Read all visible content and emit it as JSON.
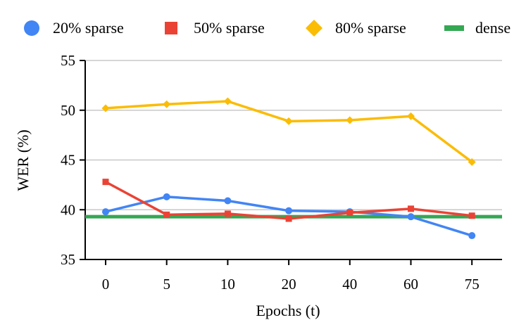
{
  "chart_data": {
    "type": "line",
    "categories": [
      "0",
      "5",
      "10",
      "20",
      "40",
      "60",
      "75"
    ],
    "xlabel": "Epochs (t)",
    "ylabel": "WER (%)",
    "ylim": [
      35,
      55
    ],
    "yticks": [
      35,
      40,
      45,
      50,
      55
    ],
    "grid": "horizontal",
    "legend_position": "top",
    "series": [
      {
        "name": "20% sparse",
        "marker": "circle",
        "color": "#4285F4",
        "values": [
          39.8,
          41.3,
          40.9,
          39.9,
          39.8,
          39.3,
          37.4
        ]
      },
      {
        "name": "50% sparse",
        "marker": "square",
        "color": "#EA4335",
        "values": [
          42.8,
          39.5,
          39.6,
          39.1,
          39.7,
          40.1,
          39.4
        ]
      },
      {
        "name": "80% sparse",
        "marker": "diamond",
        "color": "#FBBC04",
        "values": [
          50.2,
          50.6,
          50.9,
          48.9,
          49.0,
          49.4,
          44.8
        ]
      },
      {
        "name": "dense",
        "marker": "line",
        "color": "#34A853",
        "values": [
          39.3,
          39.3,
          39.3,
          39.3,
          39.3,
          39.3,
          39.3
        ]
      }
    ]
  }
}
